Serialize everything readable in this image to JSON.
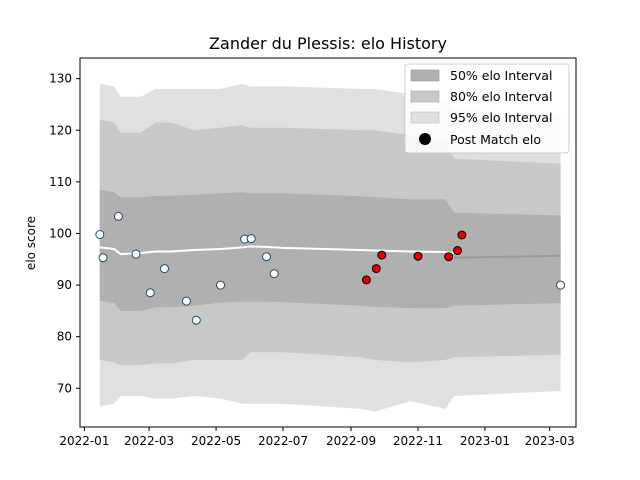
{
  "chart_data": {
    "type": "line",
    "title": "Zander du Plessis: elo History",
    "xlabel": "",
    "ylabel": "elo score",
    "xlim": [
      "2021-12-28",
      "2023-03-25"
    ],
    "ylim": [
      62.5,
      134
    ],
    "x_ticks": [
      "2022-01",
      "2022-03",
      "2022-05",
      "2022-07",
      "2022-09",
      "2022-11",
      "2023-01",
      "2023-03"
    ],
    "y_ticks": [
      70,
      80,
      90,
      100,
      110,
      120,
      130
    ],
    "grid": false,
    "legend_position": "top-right",
    "legend": [
      {
        "label": "50% elo Interval",
        "color": "#b0b0b0"
      },
      {
        "label": "80% elo Interval",
        "color": "#c8c8c8"
      },
      {
        "label": "95% elo Interval",
        "color": "#e0e0e0"
      },
      {
        "label": "Post Match elo",
        "color": "#000000"
      }
    ],
    "colors": {
      "band50": "#b0b0b0",
      "band80": "#c8c8c8",
      "band95": "#e0e0e0",
      "mean_past": "#ffffff",
      "mean_future": "#999999",
      "point_past": "#ffffff",
      "point_future": "#e00000"
    },
    "bands": {
      "x": [
        "2022-01-15",
        "2022-01-28",
        "2022-02-03",
        "2022-02-21",
        "2022-03-07",
        "2022-03-21",
        "2022-04-11",
        "2022-05-05",
        "2022-05-25",
        "2022-06-01",
        "2022-06-15",
        "2022-07-01",
        "2022-09-10",
        "2022-09-23",
        "2022-10-25",
        "2022-11-26",
        "2022-12-04",
        "2023-03-11"
      ],
      "b95": [
        [
          66.5,
          129
        ],
        [
          67,
          128.5
        ],
        [
          68.5,
          126.5
        ],
        [
          68.5,
          126.5
        ],
        [
          68,
          128
        ],
        [
          68,
          128
        ],
        [
          68.5,
          128
        ],
        [
          68,
          128
        ],
        [
          67,
          129
        ],
        [
          67,
          128.5
        ],
        [
          67,
          128.5
        ],
        [
          67,
          128.5
        ],
        [
          66,
          128
        ],
        [
          65.5,
          128
        ],
        [
          67.5,
          127
        ],
        [
          66,
          126
        ],
        [
          68.5,
          124
        ],
        [
          69.5,
          123
        ]
      ],
      "b80": [
        [
          75.5,
          122
        ],
        [
          75,
          121.5
        ],
        [
          74.5,
          119.5
        ],
        [
          74.5,
          119.5
        ],
        [
          74.8,
          121.5
        ],
        [
          74.8,
          121.5
        ],
        [
          75.5,
          120
        ],
        [
          75.5,
          120.5
        ],
        [
          75.5,
          121
        ],
        [
          77,
          120.5
        ],
        [
          77,
          120.5
        ],
        [
          77,
          120.5
        ],
        [
          76,
          120
        ],
        [
          75.5,
          120
        ],
        [
          75,
          119
        ],
        [
          75.5,
          118
        ],
        [
          76,
          114.5
        ],
        [
          76.5,
          113.5
        ]
      ],
      "b50": [
        [
          87,
          108.5
        ],
        [
          86.5,
          108
        ],
        [
          85,
          107
        ],
        [
          85,
          107
        ],
        [
          85.7,
          107.3
        ],
        [
          85.7,
          107.3
        ],
        [
          86,
          107.5
        ],
        [
          86.6,
          107.8
        ],
        [
          86.8,
          108
        ],
        [
          86.8,
          107.8
        ],
        [
          86.8,
          107.8
        ],
        [
          86.7,
          107.8
        ],
        [
          86,
          107.2
        ],
        [
          85.8,
          107
        ],
        [
          85.5,
          106.6
        ],
        [
          85.5,
          106.6
        ],
        [
          86,
          104
        ],
        [
          86.5,
          103.5
        ]
      ]
    },
    "mean_past": {
      "x": [
        "2022-01-15",
        "2022-01-28",
        "2022-02-03",
        "2022-02-21",
        "2022-03-07",
        "2022-03-21",
        "2022-04-11",
        "2022-05-05",
        "2022-05-25",
        "2022-06-01",
        "2022-06-15",
        "2022-07-01",
        "2022-09-10",
        "2022-09-23",
        "2022-10-25",
        "2022-11-26",
        "2022-12-04"
      ],
      "y": [
        97.3,
        97,
        96,
        96.2,
        96.5,
        96.5,
        96.8,
        97,
        97.3,
        97.5,
        97.4,
        97.2,
        96.8,
        96.7,
        96.5,
        96.4,
        96.2
      ]
    },
    "mean_future": {
      "x": [
        "2022-12-04",
        "2023-03-11"
      ],
      "y": [
        95.3,
        95.7
      ]
    },
    "points_past": {
      "x": [
        "2022-01-15",
        "2022-01-18",
        "2022-02-01",
        "2022-02-17",
        "2022-03-02",
        "2022-03-15",
        "2022-04-04",
        "2022-04-13",
        "2022-05-05",
        "2022-05-27",
        "2022-06-02",
        "2022-06-16",
        "2022-06-23",
        "2023-03-11"
      ],
      "y": [
        99.8,
        95.3,
        103.3,
        96,
        88.5,
        93.2,
        86.9,
        83.2,
        90,
        98.9,
        99,
        95.5,
        92.2,
        90
      ]
    },
    "points_future": {
      "x": [
        "2022-09-15",
        "2022-09-24",
        "2022-09-29",
        "2022-11-01",
        "2022-11-29",
        "2022-12-07",
        "2022-12-11"
      ],
      "y": [
        91,
        93.2,
        95.8,
        95.6,
        95.5,
        96.7,
        99.7
      ]
    }
  }
}
